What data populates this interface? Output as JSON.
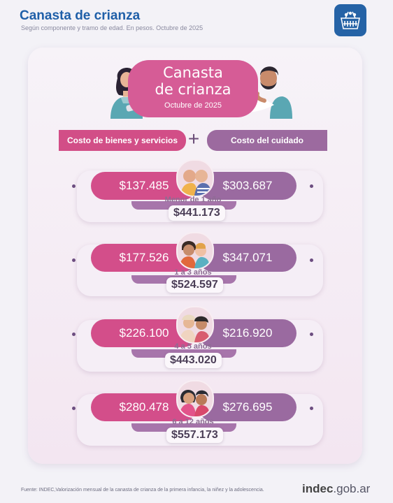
{
  "header": {
    "title": "Canasta de crianza",
    "subtitle": "Según componente y tramo de edad. En pesos. Octubre de 2025"
  },
  "card_heading": {
    "title_line1": "Canasta",
    "title_line2": "de crianza",
    "date": "Octubre de 2025"
  },
  "columns": {
    "left": "Costo de bienes y servicios",
    "plus": "+",
    "right": "Costo del cuidado"
  },
  "rows": [
    {
      "age": "Menor de 1 año",
      "goods": "$137.485",
      "care": "$303.687",
      "total": "$441.173"
    },
    {
      "age": "1 a 3 años",
      "goods": "$177.526",
      "care": "$347.071",
      "total": "$524.597"
    },
    {
      "age": "4 a 5 años",
      "goods": "$226.100",
      "care": "$216.920",
      "total": "$443.020"
    },
    {
      "age": "6 a 12 años",
      "goods": "$280.478",
      "care": "$276.695",
      "total": "$557.173"
    }
  ],
  "footer": {
    "source": "Fuente: INDEC,Valorización mensual de la canasta de crianza de la primera infancia, la niñez y la adolescencia.",
    "brand_main": "indec",
    "brand_suffix": ".gob.ar"
  },
  "icons": {
    "logo": "shopping-basket-icon",
    "mother": "mother-illustration",
    "father": "father-illustration"
  },
  "colors": {
    "title": "#1f5fa8",
    "goods": "#d34e8a",
    "care": "#9a6aa0",
    "heading": "#d65c96",
    "logo_bg": "#2563a6"
  }
}
